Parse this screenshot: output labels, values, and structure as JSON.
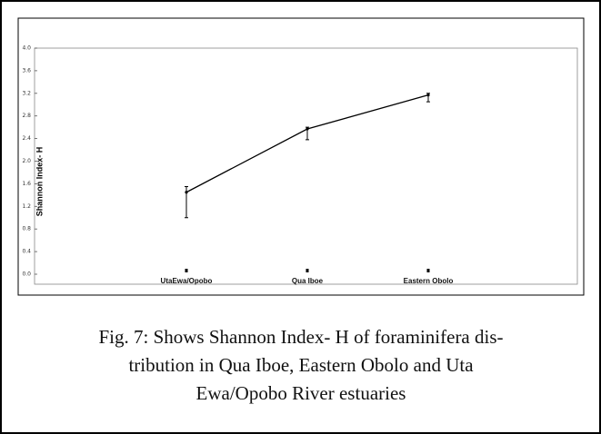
{
  "chart_data": {
    "type": "line",
    "y_label": "Shannon Index- H",
    "categories": [
      "UtaEwa/Opobo",
      "Qua Iboe",
      "Eastern Obolo"
    ],
    "series": [
      {
        "color": "#000000",
        "values": [
          1.45,
          2.57,
          3.17
        ],
        "lower": [
          1.0,
          2.38,
          3.05
        ],
        "upper": [
          1.55,
          2.6,
          3.2
        ]
      }
    ],
    "ylim": [
      0,
      4
    ],
    "yticks": [
      {
        "value": 0,
        "label": "0.0"
      },
      0.4,
      0.8,
      1.2,
      1.6,
      {
        "value": 2,
        "label": "2.0"
      },
      2.4,
      2.8,
      3.2,
      3.6,
      {
        "value": 4,
        "label": "4.0"
      }
    ],
    "grid": false
  },
  "caption": [
    "Fig. 7: Shows Shannon Index- H of foraminifera dis-",
    "tribution in Qua Iboe, Eastern Obolo and Uta",
    "Ewa/Opobo River estuaries"
  ]
}
